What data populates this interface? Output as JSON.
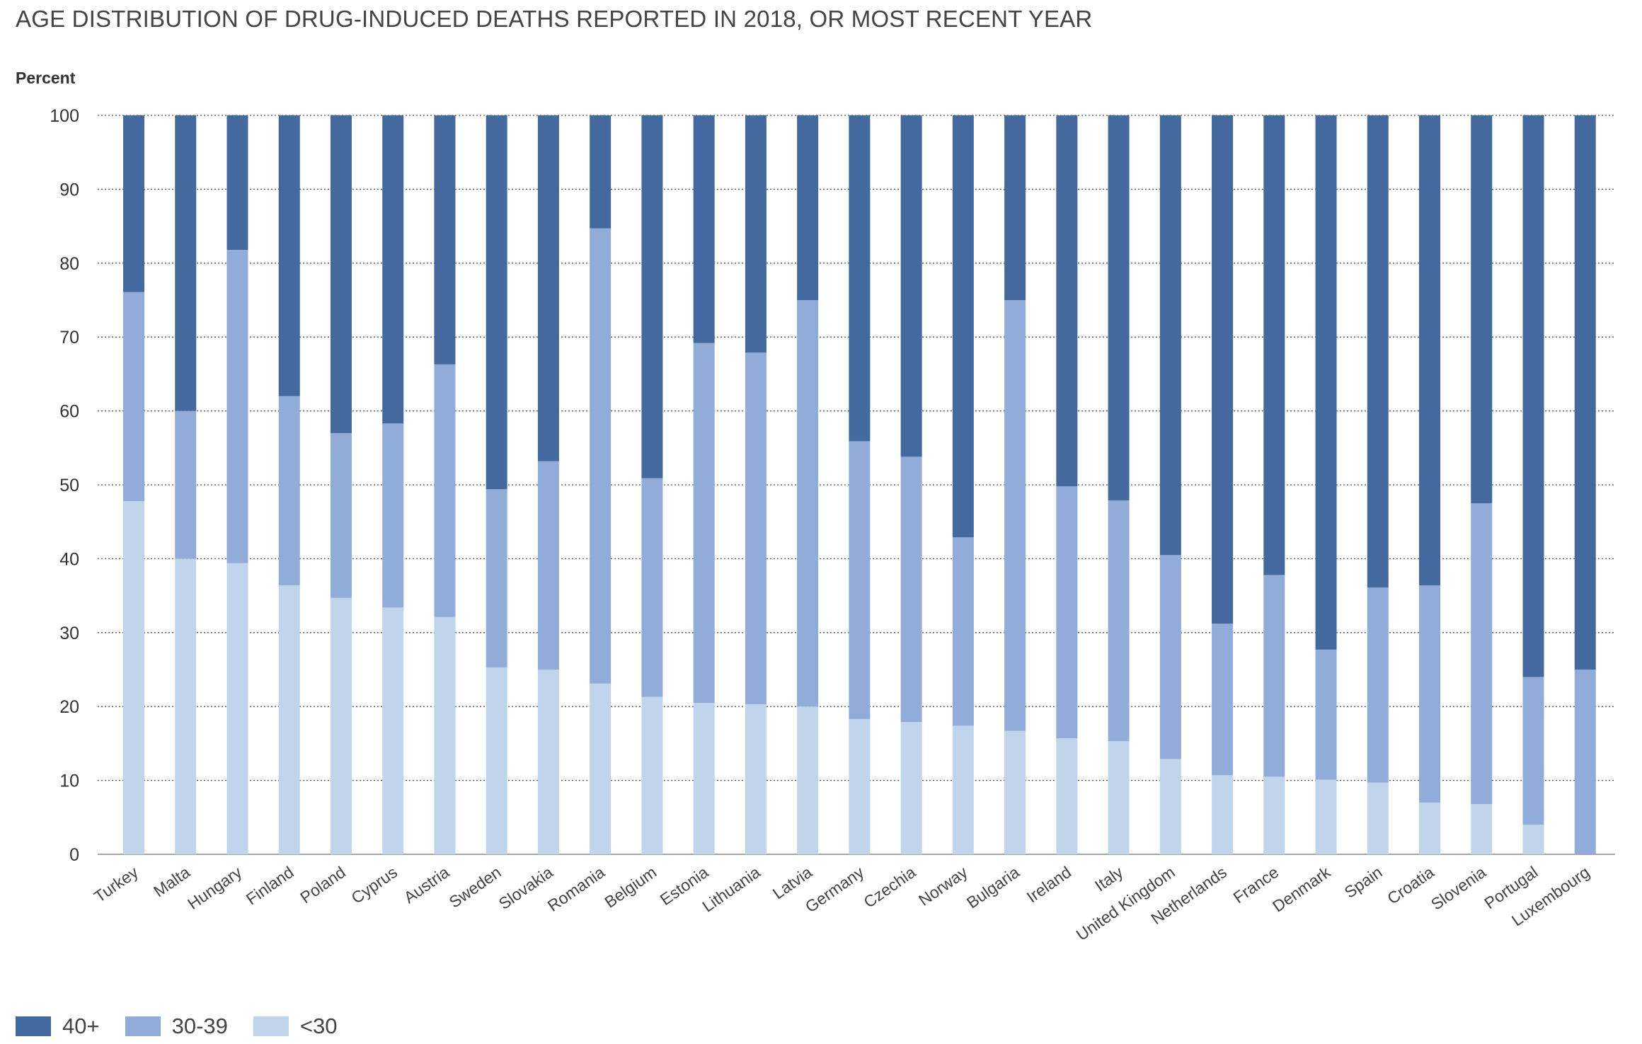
{
  "chart_data": {
    "type": "bar",
    "stacked": true,
    "title": "AGE DISTRIBUTION OF DRUG-INDUCED DEATHS REPORTED IN 2018, OR MOST RECENT YEAR",
    "ylabel": "Percent",
    "xlabel": "",
    "ylim": [
      0,
      100
    ],
    "yticks": [
      0,
      10,
      20,
      30,
      40,
      50,
      60,
      70,
      80,
      90,
      100
    ],
    "grid": "horizontal-dotted",
    "legend_position": "bottom-left",
    "categories": [
      "Turkey",
      "Malta",
      "Hungary",
      "Finland",
      "Poland",
      "Cyprus",
      "Austria",
      "Sweden",
      "Slovakia",
      "Romania",
      "Belgium",
      "Estonia",
      "Lithuania",
      "Latvia",
      "Germany",
      "Czechia",
      "Norway",
      "Bulgaria",
      "Ireland",
      "Italy",
      "United Kingdom",
      "Netherlands",
      "France",
      "Denmark",
      "Spain",
      "Croatia",
      "Slovenia",
      "Portugal",
      "Luxembourg"
    ],
    "series": [
      {
        "name": "<30",
        "color": "#c0d4ec",
        "values": [
          47.8,
          40.0,
          39.4,
          36.4,
          34.7,
          33.4,
          32.1,
          25.3,
          25.0,
          23.1,
          21.3,
          20.5,
          20.3,
          20.0,
          18.3,
          17.9,
          17.4,
          16.7,
          15.7,
          15.3,
          12.9,
          10.7,
          10.5,
          10.1,
          9.7,
          7.0,
          6.8,
          4.0,
          0.0
        ]
      },
      {
        "name": "30-39",
        "color": "#91acd8",
        "values": [
          28.3,
          20.0,
          42.4,
          25.6,
          22.3,
          24.9,
          34.2,
          24.1,
          28.2,
          61.6,
          29.6,
          48.7,
          47.6,
          55.0,
          37.6,
          35.9,
          25.5,
          58.3,
          34.1,
          32.6,
          27.6,
          20.5,
          27.3,
          17.6,
          26.4,
          29.4,
          40.7,
          20.0,
          25.0
        ]
      },
      {
        "name": "40+",
        "color": "#44699e",
        "values": [
          23.9,
          40.0,
          18.2,
          38.0,
          43.0,
          41.7,
          33.7,
          50.6,
          46.8,
          15.3,
          49.1,
          30.8,
          32.1,
          25.0,
          44.1,
          46.2,
          57.1,
          25.0,
          50.2,
          52.1,
          59.5,
          68.8,
          62.2,
          72.3,
          63.9,
          63.6,
          52.5,
          76.0,
          75.0
        ]
      }
    ]
  }
}
